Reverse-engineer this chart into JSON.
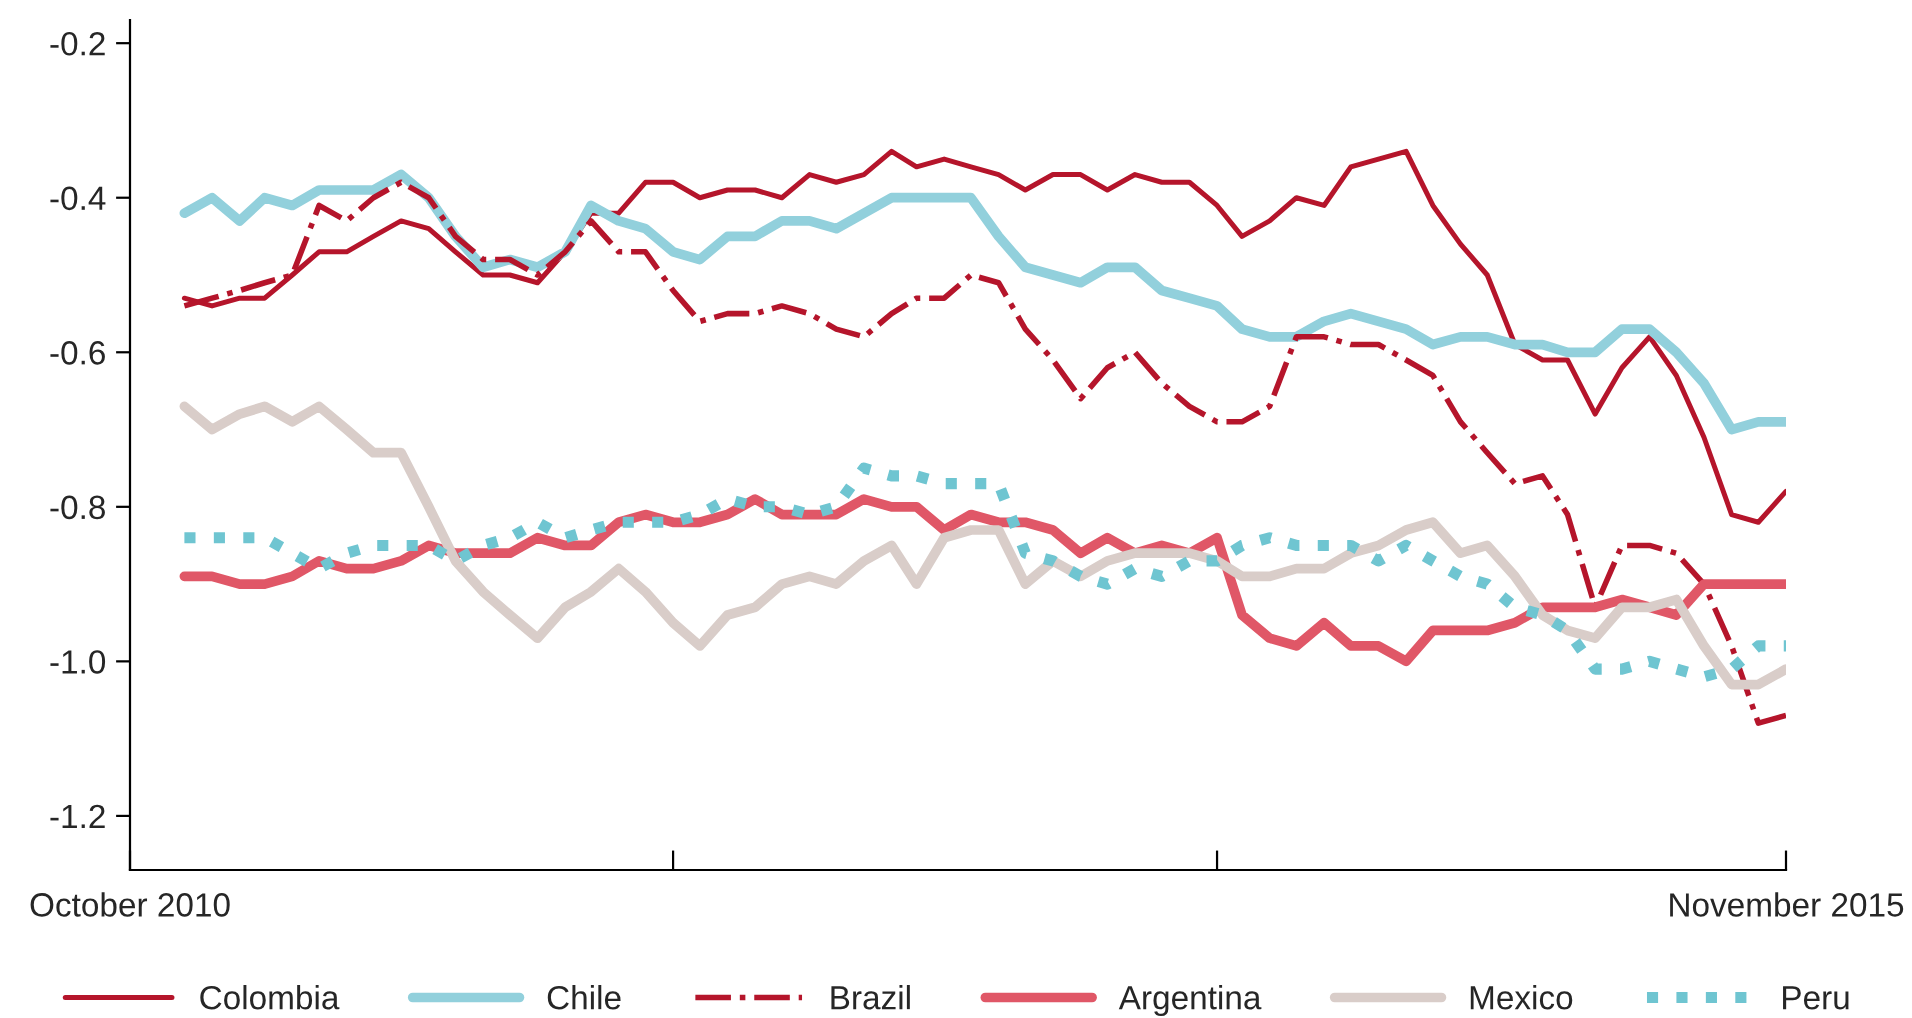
{
  "chart_data": {
    "type": "line",
    "x": [
      "2010-12",
      "2011-01",
      "2011-02",
      "2011-03",
      "2011-04",
      "2011-05",
      "2011-06",
      "2011-07",
      "2011-08",
      "2011-09",
      "2011-10",
      "2011-11",
      "2011-12",
      "2012-01",
      "2012-02",
      "2012-03",
      "2012-04",
      "2012-05",
      "2012-06",
      "2012-07",
      "2012-08",
      "2012-09",
      "2012-10",
      "2012-11",
      "2012-12",
      "2013-01",
      "2013-02",
      "2013-03",
      "2013-04",
      "2013-05",
      "2013-06",
      "2013-07",
      "2013-08",
      "2013-09",
      "2013-10",
      "2013-11",
      "2013-12",
      "2014-01",
      "2014-02",
      "2014-03",
      "2014-04",
      "2014-05",
      "2014-06",
      "2014-07",
      "2014-08",
      "2014-09",
      "2014-10",
      "2014-11",
      "2014-12",
      "2015-01",
      "2015-02",
      "2015-03",
      "2015-04",
      "2015-05",
      "2015-06",
      "2015-07",
      "2015-08",
      "2015-09",
      "2015-10",
      "2015-11"
    ],
    "series": [
      {
        "name": "Colombia",
        "color": "#b5152b",
        "line_style": "solid",
        "values": [
          -0.53,
          -0.54,
          -0.53,
          -0.53,
          -0.5,
          -0.47,
          -0.47,
          -0.45,
          -0.43,
          -0.44,
          -0.47,
          -0.5,
          -0.5,
          -0.51,
          -0.47,
          -0.42,
          -0.42,
          -0.38,
          -0.38,
          -0.4,
          -0.39,
          -0.39,
          -0.4,
          -0.37,
          -0.38,
          -0.37,
          -0.34,
          -0.36,
          -0.35,
          -0.36,
          -0.37,
          -0.39,
          -0.37,
          -0.37,
          -0.39,
          -0.37,
          -0.38,
          -0.38,
          -0.41,
          -0.45,
          -0.43,
          -0.4,
          -0.41,
          -0.36,
          -0.35,
          -0.34,
          -0.41,
          -0.46,
          -0.5,
          -0.59,
          -0.61,
          -0.61,
          -0.68,
          -0.62,
          -0.58,
          -0.63,
          -0.71,
          -0.81,
          -0.82,
          -0.78
        ]
      },
      {
        "name": "Chile",
        "color": "#92d0dc",
        "line_style": "solid",
        "values": [
          -0.42,
          -0.4,
          -0.43,
          -0.4,
          -0.41,
          -0.39,
          -0.39,
          -0.39,
          -0.37,
          -0.4,
          -0.45,
          -0.49,
          -0.48,
          -0.49,
          -0.47,
          -0.41,
          -0.43,
          -0.44,
          -0.47,
          -0.48,
          -0.45,
          -0.45,
          -0.43,
          -0.43,
          -0.44,
          -0.42,
          -0.4,
          -0.4,
          -0.4,
          -0.4,
          -0.45,
          -0.49,
          -0.5,
          -0.51,
          -0.49,
          -0.49,
          -0.52,
          -0.53,
          -0.54,
          -0.57,
          -0.58,
          -0.58,
          -0.56,
          -0.55,
          -0.56,
          -0.57,
          -0.59,
          -0.58,
          -0.58,
          -0.59,
          -0.59,
          -0.6,
          -0.6,
          -0.57,
          -0.57,
          -0.6,
          -0.64,
          -0.7,
          -0.69,
          -0.69
        ]
      },
      {
        "name": "Brazil",
        "color": "#b5152b",
        "line_style": "dashdot",
        "values": [
          -0.54,
          -0.53,
          -0.52,
          -0.51,
          -0.5,
          -0.41,
          -0.43,
          -0.4,
          -0.38,
          -0.4,
          -0.45,
          -0.48,
          -0.48,
          -0.5,
          -0.47,
          -0.43,
          -0.47,
          -0.47,
          -0.52,
          -0.56,
          -0.55,
          -0.55,
          -0.54,
          -0.55,
          -0.57,
          -0.58,
          -0.55,
          -0.53,
          -0.53,
          -0.5,
          -0.51,
          -0.57,
          -0.61,
          -0.66,
          -0.62,
          -0.6,
          -0.64,
          -0.67,
          -0.69,
          -0.69,
          -0.67,
          -0.58,
          -0.58,
          -0.59,
          -0.59,
          -0.61,
          -0.63,
          -0.69,
          -0.73,
          -0.77,
          -0.76,
          -0.81,
          -0.93,
          -0.85,
          -0.85,
          -0.86,
          -0.9,
          -0.98,
          -1.08,
          -1.07
        ]
      },
      {
        "name": "Argentina",
        "color": "#e05767",
        "line_style": "solid",
        "values": [
          -0.89,
          -0.89,
          -0.9,
          -0.9,
          -0.89,
          -0.87,
          -0.88,
          -0.88,
          -0.87,
          -0.85,
          -0.86,
          -0.86,
          -0.86,
          -0.84,
          -0.85,
          -0.85,
          -0.82,
          -0.81,
          -0.82,
          -0.82,
          -0.81,
          -0.79,
          -0.81,
          -0.81,
          -0.81,
          -0.79,
          -0.8,
          -0.8,
          -0.83,
          -0.81,
          -0.82,
          -0.82,
          -0.83,
          -0.86,
          -0.84,
          -0.86,
          -0.85,
          -0.86,
          -0.84,
          -0.94,
          -0.97,
          -0.98,
          -0.95,
          -0.98,
          -0.98,
          -1.0,
          -0.96,
          -0.96,
          -0.96,
          -0.95,
          -0.93,
          -0.93,
          -0.93,
          -0.92,
          -0.93,
          -0.94,
          -0.9,
          -0.9,
          -0.9,
          -0.9
        ]
      },
      {
        "name": "Mexico",
        "color": "#d9cdc9",
        "line_style": "solid",
        "values": [
          -0.67,
          -0.7,
          -0.68,
          -0.67,
          -0.69,
          -0.67,
          -0.7,
          -0.73,
          -0.73,
          -0.8,
          -0.87,
          -0.91,
          -0.94,
          -0.97,
          -0.93,
          -0.91,
          -0.88,
          -0.91,
          -0.95,
          -0.98,
          -0.94,
          -0.93,
          -0.9,
          -0.89,
          -0.9,
          -0.87,
          -0.85,
          -0.9,
          -0.84,
          -0.83,
          -0.83,
          -0.9,
          -0.87,
          -0.89,
          -0.87,
          -0.86,
          -0.86,
          -0.86,
          -0.87,
          -0.89,
          -0.89,
          -0.88,
          -0.88,
          -0.86,
          -0.85,
          -0.83,
          -0.82,
          -0.86,
          -0.85,
          -0.89,
          -0.94,
          -0.96,
          -0.97,
          -0.93,
          -0.93,
          -0.92,
          -0.98,
          -1.03,
          -1.03,
          -1.01
        ]
      },
      {
        "name": "Peru",
        "color": "#6fc5d1",
        "line_style": "dotted",
        "values": [
          -0.84,
          -0.84,
          -0.84,
          -0.84,
          -0.86,
          -0.88,
          -0.86,
          -0.85,
          -0.85,
          -0.85,
          -0.87,
          -0.85,
          -0.84,
          -0.82,
          -0.84,
          -0.83,
          -0.82,
          -0.82,
          -0.82,
          -0.81,
          -0.79,
          -0.8,
          -0.8,
          -0.81,
          -0.8,
          -0.75,
          -0.76,
          -0.76,
          -0.77,
          -0.77,
          -0.77,
          -0.86,
          -0.87,
          -0.89,
          -0.9,
          -0.88,
          -0.89,
          -0.87,
          -0.87,
          -0.85,
          -0.84,
          -0.85,
          -0.85,
          -0.85,
          -0.87,
          -0.85,
          -0.87,
          -0.89,
          -0.9,
          -0.93,
          -0.94,
          -0.96,
          -1.01,
          -1.01,
          -1.0,
          -1.01,
          -1.02,
          -1.01,
          -0.98,
          -0.98
        ]
      }
    ],
    "xlim": [
      "2010-10",
      "2015-11"
    ],
    "xticks": [
      {
        "value": "2010-10",
        "label": "October 2010"
      },
      {
        "value": "2012-06",
        "label": null
      },
      {
        "value": "2014-02",
        "label": null
      },
      {
        "value": "2015-11",
        "label": "November 2015"
      }
    ],
    "ylim": [
      -1.27,
      -0.17
    ],
    "yticks": [
      {
        "value": -1.2,
        "label": "-1.2"
      },
      {
        "value": -1.0,
        "label": "-1.0"
      },
      {
        "value": -0.8,
        "label": "-0.8"
      },
      {
        "value": -0.6,
        "label": "-0.6"
      },
      {
        "value": -0.4,
        "label": "-0.4"
      },
      {
        "value": -0.2,
        "label": "-0.2"
      }
    ],
    "grid": false,
    "legend": "bottom",
    "marker": "none"
  }
}
